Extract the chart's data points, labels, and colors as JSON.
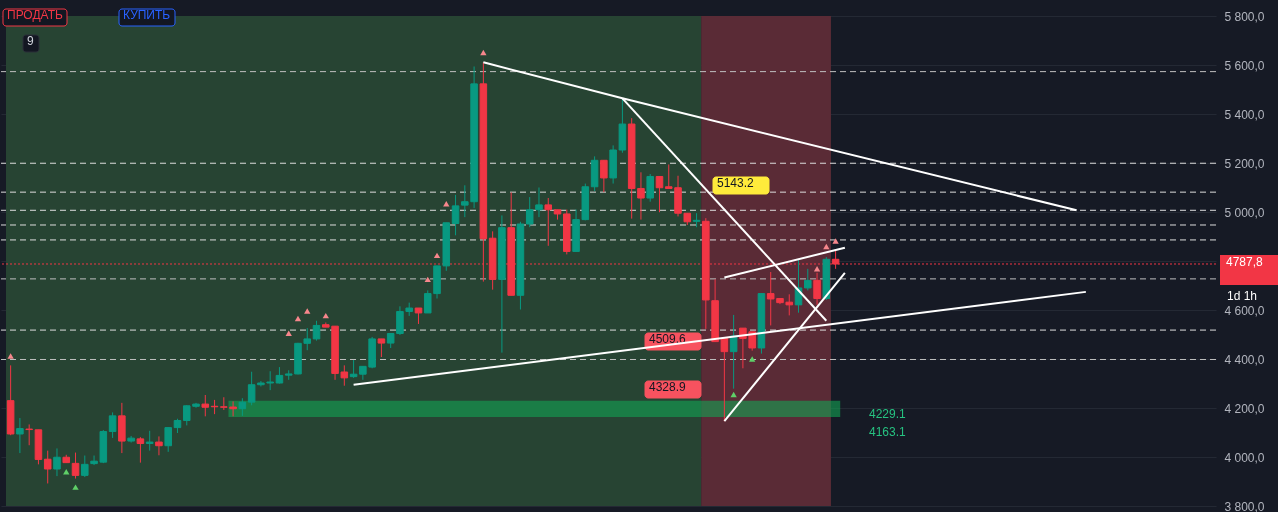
{
  "chart_data": {
    "type": "candlestick",
    "categories": [
      null,
      null,
      null,
      null,
      null,
      null,
      null,
      null,
      null,
      null,
      null,
      null,
      null,
      null,
      null,
      null,
      null,
      null,
      null,
      null,
      null,
      null,
      null,
      null,
      null,
      null,
      null,
      null,
      null,
      null,
      null,
      null,
      null,
      null,
      null,
      null,
      null,
      null,
      null,
      null,
      null,
      null,
      null,
      null,
      null,
      null,
      null,
      null,
      null,
      null,
      null,
      null,
      null,
      null,
      null,
      null,
      null,
      null,
      null,
      null,
      null,
      null,
      null,
      null,
      null,
      null,
      null,
      null,
      null,
      null,
      null,
      null,
      null,
      null,
      null,
      null,
      null,
      null,
      null,
      null,
      null,
      null,
      null,
      null,
      null,
      null,
      null,
      null,
      null,
      null,
      null,
      null,
      null,
      null,
      null,
      null,
      null,
      null,
      null,
      null,
      null,
      null,
      null,
      null,
      null,
      null,
      null,
      null,
      null,
      null,
      null,
      null,
      null,
      null,
      null,
      null,
      null,
      null,
      null,
      null,
      null,
      null,
      null,
      null,
      null,
      null,
      null,
      null,
      null,
      null
    ],
    "ohlc": [
      [
        4230,
        4374,
        4089,
        4094
      ],
      [
        4094,
        4159,
        4016,
        4116
      ],
      [
        4114,
        4133,
        4048,
        4112
      ],
      [
        4111,
        4111,
        3970,
        3990
      ],
      [
        3991,
        4026,
        3892,
        3951
      ],
      [
        3951,
        4035,
        3922,
        3999
      ],
      [
        3999,
        4009,
        3977,
        3977
      ],
      [
        3974,
        4018,
        3912,
        3925
      ],
      [
        3925,
        4006,
        3918,
        3970
      ],
      [
        3973,
        4006,
        3967,
        3983
      ],
      [
        3979,
        4110,
        3975,
        4104
      ],
      [
        4104,
        4182,
        4078,
        4168
      ],
      [
        4168,
        4221,
        4016,
        4065
      ],
      [
        4065,
        4086,
        4059,
        4077
      ],
      [
        4074,
        4081,
        3977,
        4055
      ],
      [
        4055,
        4107,
        4026,
        4061
      ],
      [
        4061,
        4084,
        4007,
        4046
      ],
      [
        4046,
        4120,
        4021,
        4120
      ],
      [
        4120,
        4156,
        4098,
        4149
      ],
      [
        4149,
        4211,
        4129,
        4209
      ],
      [
        4207,
        4221,
        4201,
        4216
      ],
      [
        4216,
        4253,
        4166,
        4203
      ],
      [
        4207,
        4233,
        4175,
        4205
      ],
      [
        4205,
        4244,
        4192,
        4203
      ],
      [
        4204,
        4227,
        4166,
        4197
      ],
      [
        4197,
        4240,
        4168,
        4224
      ],
      [
        4224,
        4348,
        4211,
        4295
      ],
      [
        4295,
        4310,
        4288,
        4302
      ],
      [
        4302,
        4350,
        4273,
        4306
      ],
      [
        4302,
        4367,
        4300,
        4333
      ],
      [
        4334,
        4354,
        4315,
        4339
      ],
      [
        4339,
        4466,
        4337,
        4464
      ],
      [
        4464,
        4526,
        4436,
        4482
      ],
      [
        4482,
        4556,
        4475,
        4537
      ],
      [
        4540,
        4549,
        4530,
        4530
      ],
      [
        4534,
        4534,
        4315,
        4341
      ],
      [
        4347,
        4374,
        4291,
        4323
      ],
      [
        4328,
        4396,
        4323,
        4338
      ],
      [
        4338,
        4370,
        4315,
        4370
      ],
      [
        4367,
        4490,
        4362,
        4482
      ],
      [
        4482,
        4482,
        4408,
        4465
      ],
      [
        4465,
        4504,
        4445,
        4504
      ],
      [
        4504,
        4615,
        4498,
        4594
      ],
      [
        4594,
        4630,
        4576,
        4608
      ],
      [
        4608,
        4608,
        4543,
        4588
      ],
      [
        4588,
        4680,
        4588,
        4667
      ],
      [
        4667,
        4780,
        4647,
        4780
      ],
      [
        4780,
        4956,
        4760,
        4956
      ],
      [
        4953,
        5070,
        4905,
        5025
      ],
      [
        5028,
        5109,
        4979,
        5042
      ],
      [
        5042,
        5594,
        5016,
        5523
      ],
      [
        5523,
        5611,
        4716,
        4891
      ],
      [
        4893,
        4921,
        4683,
        4725
      ],
      [
        4725,
        4986,
        4426,
        4936
      ],
      [
        4936,
        5080,
        4660,
        4660
      ],
      [
        4660,
        4960,
        4602,
        4951
      ],
      [
        4951,
        5061,
        4938,
        5009
      ],
      [
        5009,
        5100,
        4979,
        5029
      ],
      [
        5029,
        5057,
        4862,
        5009
      ],
      [
        5009,
        5009,
        4969,
        4992
      ],
      [
        4992,
        5010,
        4827,
        4839
      ],
      [
        4839,
        5010,
        4839,
        4969
      ],
      [
        4969,
        5116,
        4966,
        5103
      ],
      [
        5103,
        5227,
        5086,
        5211
      ],
      [
        5211,
        5211,
        5081,
        5139
      ],
      [
        5139,
        5272,
        5116,
        5253
      ],
      [
        5253,
        5464,
        5242,
        5359
      ],
      [
        5359,
        5383,
        4973,
        5096
      ],
      [
        5096,
        5162,
        4969,
        5057
      ],
      [
        5057,
        5155,
        5042,
        5145
      ],
      [
        5145,
        5145,
        4999,
        5099
      ],
      [
        5103,
        5194,
        5096,
        5096
      ],
      [
        5099,
        5148,
        4982,
        4995
      ],
      [
        4995,
        4995,
        4947,
        4960
      ],
      [
        4962,
        4995,
        4938,
        4966
      ],
      [
        4962,
        4975,
        4523,
        4641
      ],
      [
        4638,
        4725,
        4471,
        4471
      ],
      [
        4484,
        4484,
        4146,
        4430
      ],
      [
        4430,
        4580,
        4279,
        4494
      ],
      [
        4526,
        4526,
        4362,
        4484
      ],
      [
        4511,
        4511,
        4434,
        4445
      ],
      [
        4445,
        4667,
        4422,
        4667
      ],
      [
        4667,
        4755,
        4537,
        4645
      ],
      [
        4647,
        4647,
        4624,
        4630
      ],
      [
        4632,
        4664,
        4578,
        4621
      ],
      [
        4621,
        4804,
        4589,
        4690
      ],
      [
        4690,
        4768,
        4680,
        4721
      ],
      [
        4721,
        4752,
        4621,
        4647
      ],
      [
        4647,
        4816,
        4641,
        4807
      ],
      [
        4807,
        4843,
        4768,
        4787.8
      ],
      null,
      null,
      null,
      null,
      null,
      null,
      null,
      null,
      null,
      null,
      null,
      null,
      null,
      null,
      null,
      null,
      null,
      null,
      null,
      null,
      null,
      null,
      null,
      null,
      null,
      null,
      null,
      null,
      null,
      null,
      null,
      null,
      null,
      null,
      null,
      null,
      null,
      null,
      null,
      null
    ],
    "series": [
      {
        "type": "line",
        "color": "#ffffff",
        "values": [
          null,
          null,
          null,
          null,
          null,
          null,
          null,
          null,
          null,
          null,
          null,
          null,
          null,
          null,
          null,
          null,
          null,
          null,
          null,
          null,
          null,
          null,
          null,
          null,
          null,
          null,
          null,
          null,
          null,
          null,
          null,
          null,
          null,
          null,
          null,
          null,
          null,
          null,
          null,
          null,
          null,
          null,
          null,
          null,
          null,
          null,
          null,
          null,
          null,
          null,
          null,
          5611,
          null,
          null,
          null,
          null,
          null,
          null,
          null,
          null,
          null,
          null,
          null,
          null,
          null,
          null,
          5464,
          null,
          null,
          null,
          null,
          null,
          null,
          null,
          null,
          null,
          null,
          null,
          null,
          null,
          null,
          null,
          null,
          null,
          null,
          null,
          null,
          null,
          null,
          null,
          null,
          null,
          null,
          null,
          null,
          null,
          null,
          null,
          null,
          null,
          null,
          null,
          null,
          null,
          null,
          null,
          null,
          null,
          null,
          null,
          null,
          null,
          null,
          null,
          null,
          5007,
          null,
          null,
          null,
          null,
          null,
          null,
          null,
          null,
          null,
          null,
          null,
          null,
          null,
          null
        ]
      },
      {
        "type": "line",
        "color": "#ffffff",
        "values": [
          null,
          null,
          null,
          null,
          null,
          null,
          null,
          null,
          null,
          null,
          null,
          null,
          null,
          null,
          null,
          null,
          null,
          null,
          null,
          null,
          null,
          null,
          null,
          null,
          null,
          null,
          null,
          null,
          null,
          null,
          null,
          null,
          null,
          null,
          null,
          null,
          null,
          null,
          null,
          null,
          null,
          null,
          null,
          null,
          null,
          null,
          null,
          null,
          null,
          null,
          null,
          null,
          null,
          null,
          null,
          null,
          null,
          null,
          null,
          null,
          null,
          null,
          null,
          null,
          null,
          null,
          5464,
          null,
          null,
          null,
          null,
          null,
          null,
          null,
          null,
          null,
          null,
          null,
          null,
          null,
          null,
          null,
          null,
          null,
          null,
          null,
          null,
          null,
          4556,
          null,
          null,
          null,
          null,
          null,
          null,
          null,
          null,
          null,
          null,
          null,
          null,
          null,
          null,
          null,
          null,
          null,
          null,
          null,
          null,
          null,
          null,
          null,
          null,
          null,
          null,
          null,
          null,
          null,
          null,
          null,
          null,
          null,
          null,
          null,
          null,
          null,
          null,
          null,
          null,
          null
        ]
      },
      {
        "type": "line",
        "color": "#ffffff",
        "values": [
          null,
          null,
          null,
          null,
          null,
          null,
          null,
          null,
          null,
          null,
          null,
          null,
          null,
          null,
          null,
          null,
          null,
          null,
          null,
          null,
          null,
          null,
          null,
          null,
          null,
          null,
          null,
          null,
          null,
          null,
          null,
          null,
          null,
          null,
          null,
          null,
          null,
          4295,
          null,
          null,
          null,
          null,
          null,
          null,
          null,
          null,
          null,
          null,
          null,
          null,
          null,
          null,
          null,
          null,
          null,
          null,
          null,
          null,
          null,
          null,
          null,
          null,
          null,
          null,
          null,
          null,
          null,
          null,
          null,
          null,
          null,
          null,
          null,
          null,
          null,
          null,
          null,
          null,
          null,
          null,
          null,
          null,
          null,
          null,
          null,
          null,
          null,
          null,
          null,
          null,
          null,
          null,
          null,
          null,
          null,
          null,
          null,
          null,
          null,
          null,
          null,
          null,
          null,
          null,
          null,
          null,
          null,
          null,
          null,
          null,
          null,
          null,
          null,
          null,
          null,
          null,
          4674,
          null,
          null,
          null,
          null,
          null,
          null,
          null,
          null,
          null,
          null,
          null,
          null,
          null
        ]
      },
      {
        "type": "line",
        "color": "#ffffff",
        "values": [
          null,
          null,
          null,
          null,
          null,
          null,
          null,
          null,
          null,
          null,
          null,
          null,
          null,
          null,
          null,
          null,
          null,
          null,
          null,
          null,
          null,
          null,
          null,
          null,
          null,
          null,
          null,
          null,
          null,
          null,
          null,
          null,
          null,
          null,
          null,
          null,
          null,
          null,
          null,
          null,
          null,
          null,
          null,
          null,
          null,
          null,
          null,
          null,
          null,
          null,
          null,
          null,
          null,
          null,
          null,
          null,
          null,
          null,
          null,
          null,
          null,
          null,
          null,
          null,
          null,
          null,
          null,
          null,
          null,
          null,
          null,
          null,
          null,
          null,
          null,
          null,
          null,
          4146,
          null,
          null,
          null,
          null,
          null,
          null,
          null,
          null,
          null,
          null,
          null,
          null,
          4752,
          null,
          null,
          null,
          null,
          null,
          null,
          null,
          null,
          null,
          null,
          null,
          null,
          null,
          null,
          null,
          null,
          null,
          null,
          null,
          null,
          null,
          null,
          null,
          null,
          null,
          null,
          null,
          null,
          null,
          null,
          null,
          null,
          null,
          null,
          null,
          null,
          null,
          null,
          null
        ]
      },
      {
        "type": "line",
        "color": "#ffffff",
        "values": [
          null,
          null,
          null,
          null,
          null,
          null,
          null,
          null,
          null,
          null,
          null,
          null,
          null,
          null,
          null,
          null,
          null,
          null,
          null,
          null,
          null,
          null,
          null,
          null,
          null,
          null,
          null,
          null,
          null,
          null,
          null,
          null,
          null,
          null,
          null,
          null,
          null,
          null,
          null,
          null,
          null,
          null,
          null,
          null,
          null,
          null,
          null,
          null,
          null,
          null,
          null,
          null,
          null,
          null,
          null,
          null,
          null,
          null,
          null,
          null,
          null,
          null,
          null,
          null,
          null,
          null,
          null,
          null,
          null,
          null,
          null,
          null,
          null,
          null,
          null,
          null,
          null,
          4733,
          null,
          null,
          null,
          null,
          null,
          null,
          null,
          null,
          null,
          null,
          null,
          null,
          4854,
          null,
          null,
          null,
          null,
          null,
          null,
          null,
          null,
          null,
          null,
          null,
          null,
          null,
          null,
          null,
          null,
          null,
          null,
          null,
          null,
          null,
          null,
          null,
          null,
          null,
          null,
          null,
          null,
          null,
          null,
          null,
          null,
          null,
          null,
          null,
          null,
          null,
          null,
          null
        ]
      },
      {
        "type": "scatter",
        "marker": "triangle",
        "color": "#f7868c",
        "values": [
          4412,
          null,
          null,
          null,
          null,
          null,
          null,
          null,
          null,
          null,
          null,
          null,
          null,
          null,
          null,
          null,
          null,
          null,
          null,
          null,
          null,
          null,
          null,
          null,
          null,
          null,
          null,
          null,
          null,
          null,
          4505,
          4565,
          4596,
          null,
          4577,
          null,
          null,
          null,
          null,
          null,
          null,
          null,
          null,
          null,
          null,
          4725,
          4823,
          5034,
          null,
          null,
          null,
          5651,
          null,
          null,
          null,
          null,
          null,
          null,
          null,
          null,
          null,
          null,
          null,
          null,
          null,
          null,
          null,
          null,
          null,
          null,
          null,
          null,
          null,
          null,
          null,
          null,
          null,
          null,
          null,
          null,
          null,
          null,
          null,
          null,
          null,
          null,
          null,
          4768,
          4859,
          4882,
          null,
          null,
          null,
          null,
          null,
          null,
          null,
          null,
          null,
          null,
          null,
          null,
          null,
          null,
          null,
          null,
          null,
          null,
          null,
          null,
          null,
          null,
          null,
          null,
          null,
          null,
          null,
          null,
          null,
          null,
          null,
          null,
          null,
          null,
          null,
          null,
          null,
          null,
          null,
          null
        ]
      },
      {
        "type": "scatter",
        "marker": "triangle",
        "color": "#5fd068",
        "values": [
          null,
          null,
          null,
          null,
          null,
          null,
          3940,
          3877,
          null,
          null,
          null,
          null,
          null,
          null,
          null,
          null,
          null,
          null,
          null,
          null,
          null,
          null,
          null,
          null,
          null,
          null,
          null,
          null,
          null,
          null,
          null,
          null,
          null,
          null,
          null,
          null,
          null,
          null,
          null,
          null,
          null,
          null,
          null,
          null,
          null,
          null,
          null,
          null,
          null,
          null,
          null,
          null,
          null,
          null,
          null,
          null,
          null,
          null,
          null,
          null,
          null,
          null,
          null,
          null,
          null,
          null,
          null,
          null,
          null,
          null,
          null,
          null,
          null,
          null,
          null,
          null,
          null,
          null,
          4255,
          null,
          4400,
          null,
          null,
          null,
          null,
          null,
          null,
          null,
          null,
          null,
          null,
          null,
          null,
          null,
          null,
          null,
          null,
          null,
          null,
          null,
          null,
          null,
          null,
          null,
          null,
          null,
          null,
          null,
          null,
          null,
          null,
          null,
          null,
          null,
          null,
          null,
          null,
          null,
          null,
          null,
          null,
          null,
          null,
          null,
          null,
          null,
          null,
          null,
          null,
          null
        ]
      }
    ],
    "ylim": [
      3800,
      5800
    ],
    "yticks": [
      {
        "value": 3800,
        "label": "3 800,0"
      },
      {
        "value": 4000,
        "label": "4 000,0"
      },
      {
        "value": 4200,
        "label": "4 200,0"
      },
      {
        "value": 4400,
        "label": "4 400,0"
      },
      {
        "value": 4600,
        "label": "4 600,0"
      },
      {
        "value": 4800,
        "label": null
      },
      {
        "value": 5000,
        "label": "5 000,0"
      },
      {
        "value": 5200,
        "label": "5 200,0"
      },
      {
        "value": 5400,
        "label": "5 400,0"
      },
      {
        "value": 5600,
        "label": "5 600,0"
      },
      {
        "value": 5800,
        "label": "5 800,0"
      }
    ],
    "grid": "y",
    "tick_labels": "y",
    "bands": [
      {
        "axis": "y",
        "from": 4163.1,
        "to": 4229.1,
        "color": "#13a454"
      }
    ],
    "ref_lines": [
      {
        "axis": "y",
        "value": 5573,
        "line_style": "dashed",
        "color": "#bfbfbf"
      },
      {
        "axis": "y",
        "value": 5199,
        "line_style": "dashed",
        "color": "#dddddd"
      },
      {
        "axis": "y",
        "value": 5081,
        "line_style": "dashed",
        "color": "#dddddd"
      },
      {
        "axis": "y",
        "value": 5007,
        "line_style": "dashed",
        "color": "#dddddd"
      },
      {
        "axis": "y",
        "value": 4947,
        "line_style": "dashed",
        "color": "#dddddd"
      },
      {
        "axis": "y",
        "value": 4886,
        "line_style": "dashed",
        "color": "#dddddd"
      },
      {
        "axis": "y",
        "value": 4727,
        "line_style": "dashed",
        "color": "#bfbfbf"
      },
      {
        "axis": "y",
        "value": 4518,
        "line_style": "dashed",
        "color": "#dddddd"
      },
      {
        "axis": "y",
        "value": 4398,
        "line_style": "dashed",
        "color": "#bfbfbf"
      },
      {
        "axis": "y",
        "value": 4787.8,
        "line_style": "dotted",
        "color": "#f23645",
        "label": "4787,8"
      }
    ],
    "annotations": [
      "ПРОДАТЬ",
      "КУПИТЬ",
      "9",
      "5143.2",
      "4509.6",
      "4328.9",
      "4229.1",
      "4163.1",
      "1d 1h"
    ]
  }
}
